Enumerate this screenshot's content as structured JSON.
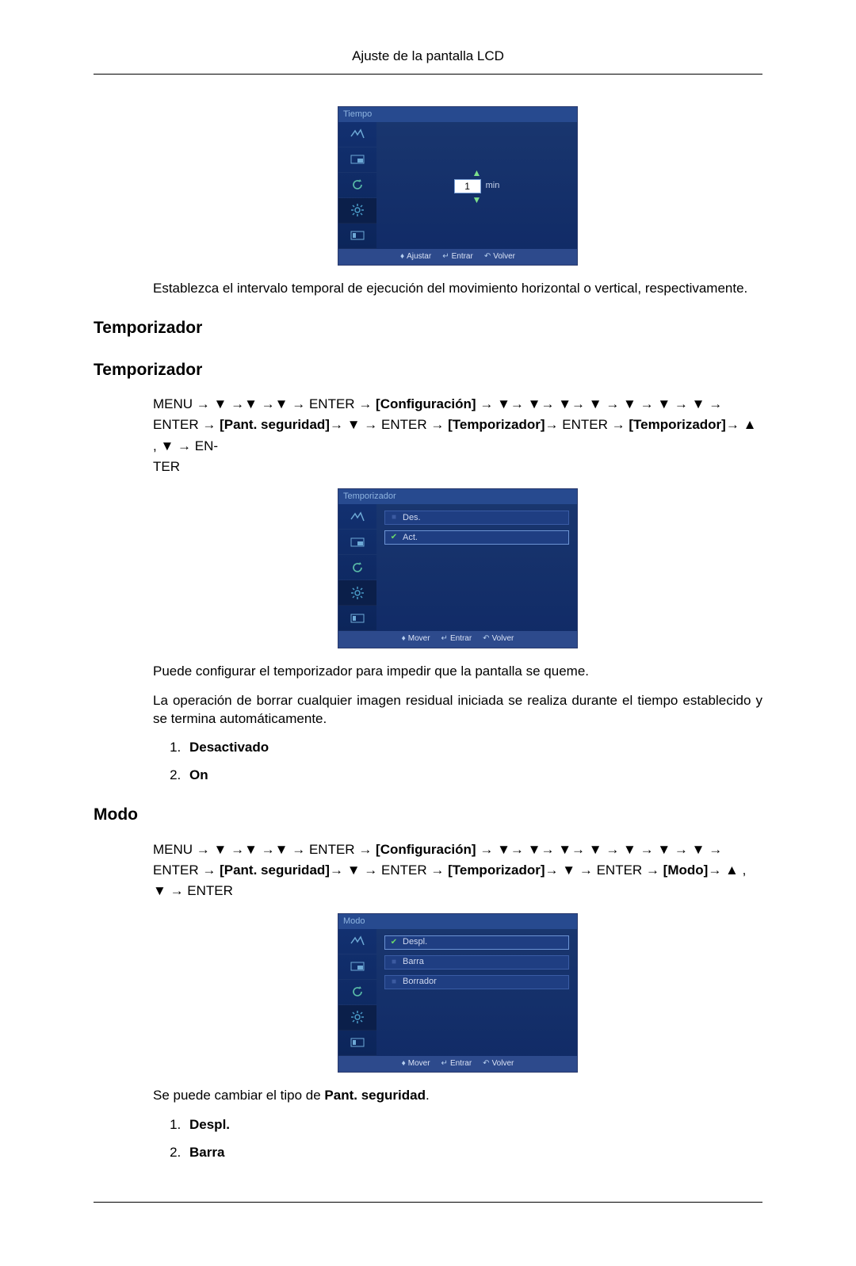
{
  "header": {
    "title": "Ajuste de la pantalla LCD"
  },
  "osd_common": {
    "background_gradient_top": "#1a376f",
    "background_gradient_bottom": "#102a66",
    "footer_bg": "#2d4a8c",
    "title_bg": "#274a8f",
    "title_color": "#8eb4e0",
    "option_bg": "#1f3e82",
    "option_border": "#3a5ca5",
    "text_color": "#cfd8ef",
    "check_on_color": "#6bd96b",
    "check_off_color": "#3b5aa0",
    "arrow_color": "#7de08c",
    "sidebar_icons": [
      "input-icon",
      "pip-icon",
      "reload-icon",
      "gear-icon",
      "misc-icon"
    ]
  },
  "osd_tiempo": {
    "title": "Tiempo",
    "spinner_value": "1",
    "spinner_unit": "min",
    "footer": {
      "left_label": "Ajustar",
      "mid_label": "Entrar",
      "right_label": "Volver"
    }
  },
  "tiempo_caption": "Establezca el intervalo temporal de ejecución del movimiento horizontal o vertical, respectivamente.",
  "heading_temporizador_1": "Temporizador",
  "heading_temporizador_2": "Temporizador",
  "nav_temporizador": {
    "menu": "MENU",
    "enter": "ENTER",
    "ter": "TER",
    "bracket_config": "[Configuración]",
    "bracket_pant": "[Pant. seguridad]",
    "bracket_temp1": "[Temporizador]",
    "bracket_temp2": "[Temporizador]",
    "arrow": "→",
    "down": "▼",
    "up": "▲",
    "comma": ","
  },
  "osd_temporizador": {
    "title": "Temporizador",
    "options": [
      {
        "label": "Des.",
        "checked": false
      },
      {
        "label": "Act.",
        "checked": true
      }
    ],
    "footer": {
      "left_label": "Mover",
      "mid_label": "Entrar",
      "right_label": "Volver"
    }
  },
  "temporizador_p1": "Puede configurar el temporizador para impedir que la pantalla se queme.",
  "temporizador_p2": "La operación de borrar cualquier imagen residual iniciada se realiza durante el tiempo establecido y se termina automáticamente.",
  "temporizador_list": [
    "Desactivado",
    "On"
  ],
  "heading_modo": "Modo",
  "nav_modo": {
    "menu": "MENU",
    "enter": "ENTER",
    "bracket_config": "[Configuración]",
    "bracket_pant": "[Pant. seguridad]",
    "bracket_temp": "[Temporizador]",
    "bracket_modo": "[Modo]",
    "arrow": "→",
    "down": "▼",
    "up": "▲",
    "comma": ","
  },
  "osd_modo": {
    "title": "Modo",
    "options": [
      {
        "label": "Despl.",
        "checked": true
      },
      {
        "label": "Barra",
        "checked": false
      },
      {
        "label": "Borrador",
        "checked": false
      }
    ],
    "footer": {
      "left_label": "Mover",
      "mid_label": "Entrar",
      "right_label": "Volver"
    }
  },
  "modo_p1_pre": "Se puede cambiar el tipo de ",
  "modo_p1_bold": "Pant. seguridad",
  "modo_p1_post": ".",
  "modo_list": [
    "Despl.",
    "Barra"
  ]
}
